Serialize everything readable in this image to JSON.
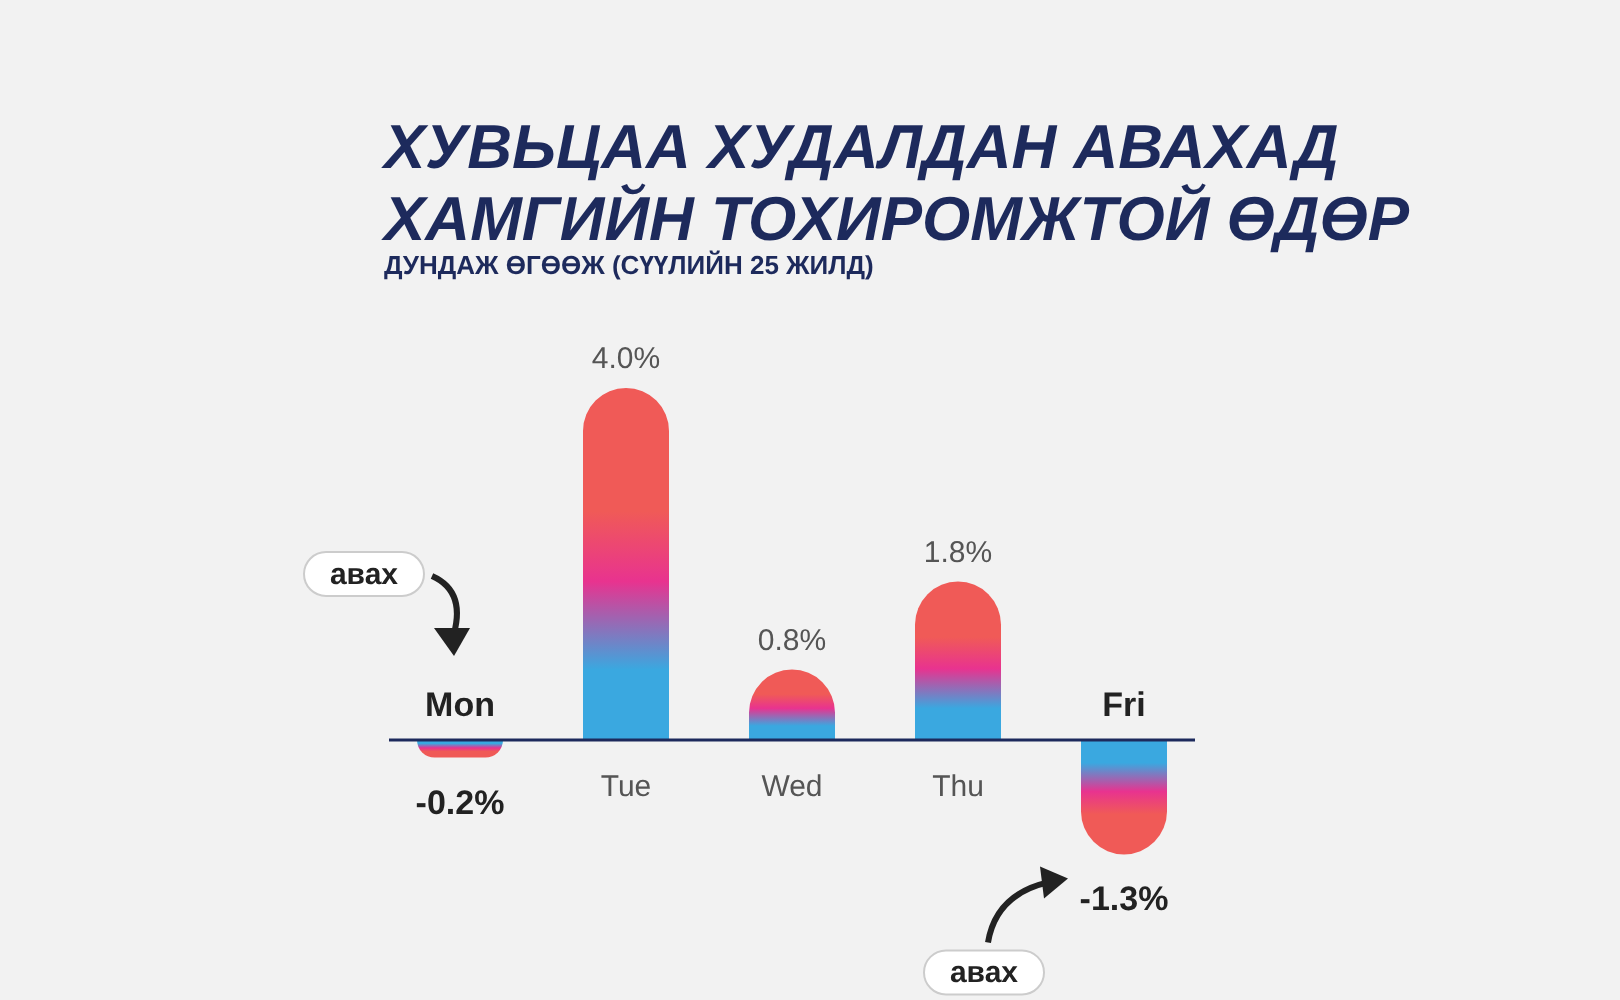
{
  "chart_data": {
    "type": "bar",
    "title": "ХУВЬЦАА ХУДАЛДАН АВАХАД ХАМГИЙН ТОХИРОМЖТОЙ ӨДӨР",
    "subtitle": "ДУНДАЖ ӨГӨӨЖ (СҮҮЛИЙН 25 ЖИЛД)",
    "categories": [
      "Mon",
      "Tue",
      "Wed",
      "Thu",
      "Fri"
    ],
    "values": [
      -0.2,
      4.0,
      0.8,
      1.8,
      -1.3
    ],
    "value_labels": [
      "-0.2%",
      "4.0%",
      "0.8%",
      "1.8%",
      "-1.3%"
    ],
    "color": "#f05a57",
    "relative": false,
    "annotations": [
      "авах",
      "авах"
    ]
  }
}
